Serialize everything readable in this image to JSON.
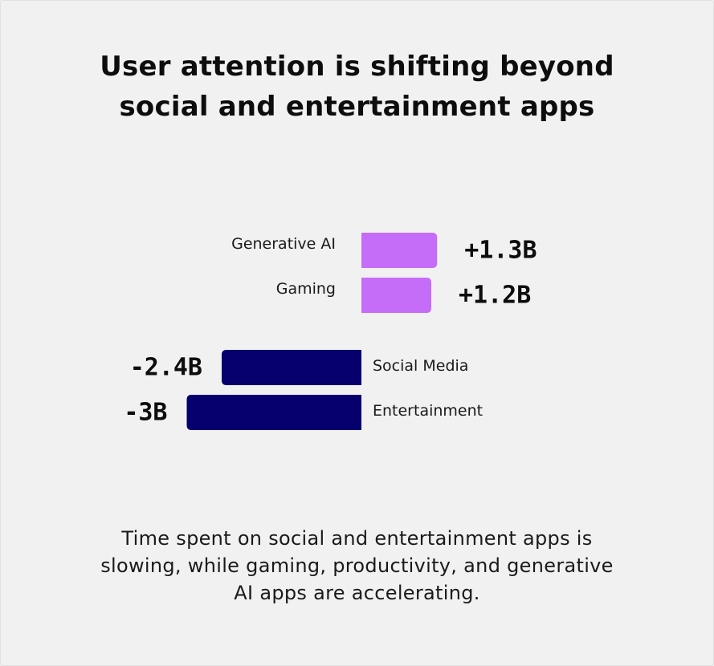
{
  "title_lines": [
    "User attention is shifting beyond",
    "social and entertainment apps"
  ],
  "caption_lines": [
    "Time spent on social and entertainment apps is",
    "slowing, while gaming, productivity, and generative",
    "AI apps are accelerating."
  ],
  "colors": {
    "positive": "#c56cf8",
    "negative": "#05006e",
    "background": "#f2f1f1",
    "text": "#0d0d0d"
  },
  "chart_data": {
    "type": "bar",
    "orientation": "horizontal-diverging",
    "categories": [
      "Generative AI",
      "Gaming",
      "Social Media",
      "Entertainment"
    ],
    "values": [
      1.3,
      1.2,
      -2.4,
      -3.0
    ],
    "value_labels": [
      "+1.3B",
      "+1.2B",
      "-2.4B",
      "-3B"
    ],
    "unit": "B",
    "title": "User attention is shifting beyond social and entertainment apps",
    "grid": false,
    "legend": "none"
  }
}
